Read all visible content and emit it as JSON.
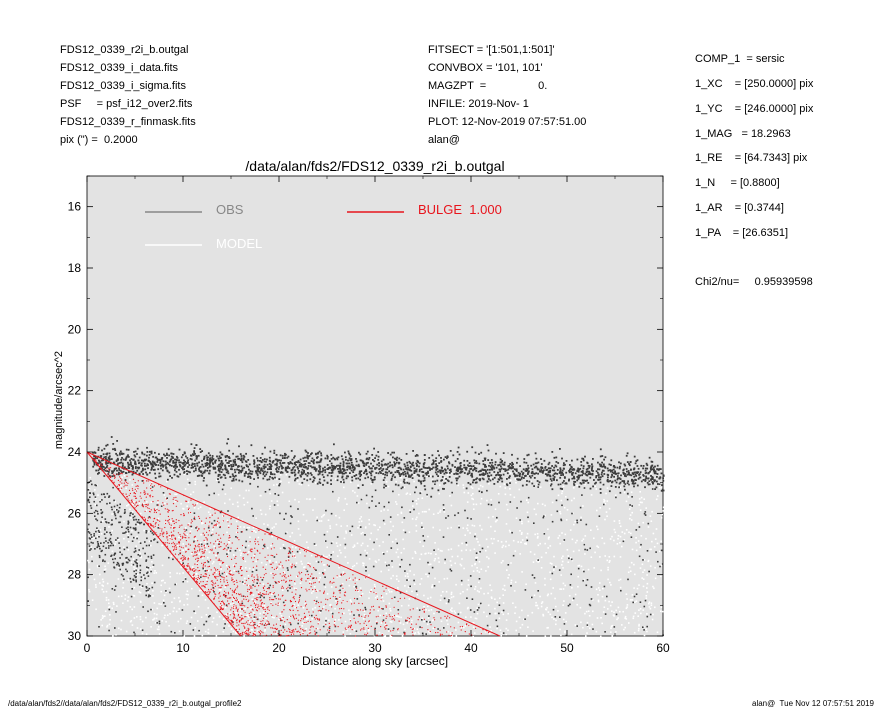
{
  "header_left": [
    "FDS12_0339_r2i_b.outgal",
    "FDS12_0339_i_data.fits",
    "FDS12_0339_i_sigma.fits",
    "PSF     = psf_i12_over2.fits",
    "FDS12_0339_r_finmask.fits",
    "pix (\") =  0.2000"
  ],
  "header_mid": [
    "FITSECT = '[1:501,1:501]'",
    "CONVBOX = '101, 101'",
    "MAGZPT  =                 0.",
    "INFILE: 2019-Nov- 1",
    "PLOT: 12-Nov-2019 07:57:51.00",
    "alan@"
  ],
  "params": [
    "COMP_1  = sersic",
    "1_XC    = [250.0000] pix",
    "1_YC    = [246.0000] pix",
    "1_MAG   = 18.2963",
    "1_RE    = [64.7343] pix",
    "1_N     = [0.8800]",
    "1_AR    = [0.3744]",
    "1_PA    = [26.6351]"
  ],
  "chi2": "Chi2/nu=     0.95939598",
  "footer_left": "/data/alan/fds2//data/alan/fds2/FDS12_0339_r2i_b.outgal_profile2",
  "footer_right": "alan@  Tue Nov 12 07:57:51 2019",
  "colors": {
    "panel_bg": "#e3e3e3",
    "obs": "#3c3c3c",
    "model": "#ffffff",
    "bulge": "#e8141c",
    "obs_legend": "#888888"
  },
  "chart_data": {
    "type": "scatter",
    "title": "/data/alan/fds2/FDS12_0339_r2i_b.outgal",
    "xlabel": "Distance along sky [arcsec]",
    "ylabel": "magnitude/arcsec^2",
    "xlim": [
      0,
      60
    ],
    "ylim": [
      30,
      15
    ],
    "y_inverted": true,
    "xticks": [
      0,
      10,
      20,
      30,
      40,
      50,
      60
    ],
    "yticks": [
      16,
      18,
      20,
      22,
      24,
      26,
      28,
      30
    ],
    "legend": [
      {
        "name": "OBS",
        "color": "#888888"
      },
      {
        "name": "MODEL",
        "color": "#ffffff"
      },
      {
        "name": "BULGE  1.000",
        "color": "#e8141c"
      }
    ],
    "series": [
      {
        "name": "OBS",
        "description": "sky pixels, band near 24.4 mag flattening to 24.7 at 60 arcsec, plus faint scatter 25-30 mag",
        "band_start": [
          0.5,
          24.3
        ],
        "band_end": [
          60,
          24.7
        ]
      },
      {
        "name": "MODEL",
        "description": "white model points spread across 24-30 mag"
      },
      {
        "name": "BULGE  1.000",
        "description": "sersic profile fan from 24.0 mag at 0 arcsec; steep edge reaches 30 mag at ~16 arcsec, shallow edge at ~43 arcsec",
        "origin": [
          0,
          24.0
        ],
        "edge_steep": [
          16,
          30
        ],
        "edge_shallow": [
          43,
          30
        ]
      }
    ]
  }
}
